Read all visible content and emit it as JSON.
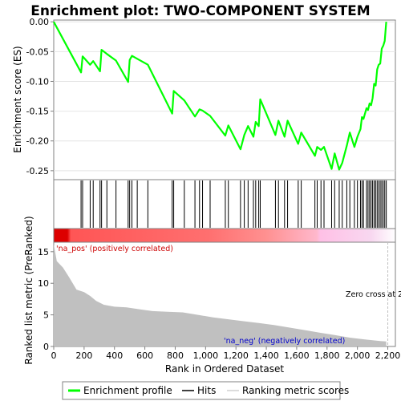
{
  "chart_data": {
    "type": "line",
    "title": "Enrichment plot: TWO-COMPONENT SYSTEM",
    "xlabel": "Rank in Ordered Dataset",
    "ylabel_top": "Enrichment score (ES)",
    "ylabel_bottom": "Ranked list metric (PreRanked)",
    "x_ticks": [
      "0",
      "200",
      "400",
      "600",
      "800",
      "1,000",
      "1,200",
      "1,400",
      "1,600",
      "1,800",
      "2,000",
      "2,200"
    ],
    "x_tick_values": [
      0,
      200,
      400,
      600,
      800,
      1000,
      1200,
      1400,
      1600,
      1800,
      2000,
      2200
    ],
    "xlim": [
      0,
      2250
    ],
    "es_yticks": [
      "0.00",
      "-0.05",
      "-0.10",
      "-0.15",
      "-0.20",
      "-0.25"
    ],
    "es_ytick_values": [
      0,
      -0.05,
      -0.1,
      -0.15,
      -0.2,
      -0.25
    ],
    "es_ylim": [
      -0.265,
      0.003
    ],
    "metric_yticks": [
      "0",
      "5",
      "10",
      "15"
    ],
    "metric_ytick_values": [
      0,
      5,
      10,
      15
    ],
    "metric_ylim": [
      0,
      16.5
    ],
    "n_genes": 2200,
    "series": [
      {
        "name": "Enrichment profile",
        "color": "#00ff00",
        "x": [
          0,
          180,
          190,
          240,
          260,
          305,
          315,
          350,
          410,
          490,
          500,
          515,
          550,
          620,
          780,
          790,
          860,
          930,
          960,
          980,
          1030,
          1130,
          1150,
          1230,
          1255,
          1280,
          1315,
          1330,
          1350,
          1360,
          1460,
          1480,
          1520,
          1540,
          1610,
          1630,
          1720,
          1735,
          1760,
          1780,
          1830,
          1850,
          1880,
          1900,
          1930,
          1950,
          1980,
          2000,
          2020,
          2030,
          2040,
          2060,
          2070,
          2080,
          2090,
          2100,
          2110,
          2120,
          2130,
          2140,
          2150,
          2160,
          2170,
          2180,
          2190
        ],
        "y": [
          0,
          -0.085,
          -0.058,
          -0.072,
          -0.066,
          -0.083,
          -0.047,
          -0.054,
          -0.065,
          -0.101,
          -0.064,
          -0.057,
          -0.062,
          -0.072,
          -0.154,
          -0.116,
          -0.132,
          -0.159,
          -0.147,
          -0.149,
          -0.158,
          -0.191,
          -0.174,
          -0.214,
          -0.19,
          -0.175,
          -0.193,
          -0.168,
          -0.175,
          -0.13,
          -0.19,
          -0.166,
          -0.193,
          -0.166,
          -0.205,
          -0.186,
          -0.225,
          -0.21,
          -0.215,
          -0.21,
          -0.247,
          -0.221,
          -0.248,
          -0.237,
          -0.208,
          -0.186,
          -0.21,
          -0.193,
          -0.18,
          -0.16,
          -0.163,
          -0.145,
          -0.148,
          -0.137,
          -0.14,
          -0.128,
          -0.104,
          -0.107,
          -0.08,
          -0.072,
          -0.07,
          -0.045,
          -0.04,
          -0.032,
          0.0
        ]
      }
    ],
    "hits": [
      180,
      190,
      240,
      260,
      305,
      315,
      350,
      410,
      490,
      500,
      515,
      550,
      620,
      780,
      790,
      860,
      930,
      960,
      980,
      1030,
      1130,
      1150,
      1230,
      1255,
      1280,
      1315,
      1330,
      1350,
      1360,
      1460,
      1480,
      1520,
      1540,
      1610,
      1630,
      1720,
      1735,
      1760,
      1780,
      1830,
      1850,
      1880,
      1900,
      1930,
      1950,
      1980,
      2000,
      2020,
      2030,
      2040,
      2060,
      2070,
      2080,
      2090,
      2100,
      2110,
      2120,
      2130,
      2140,
      2150,
      2160,
      2170,
      2180,
      2190
    ],
    "metric_curve": {
      "x": [
        0,
        20,
        60,
        100,
        150,
        200,
        240,
        280,
        330,
        400,
        480,
        560,
        650,
        750,
        850,
        950,
        1050,
        1150,
        1250,
        1350,
        1450,
        1550,
        1650,
        1750,
        1850,
        1950,
        2050,
        2150,
        2190
      ],
      "y": [
        16.2,
        13.5,
        12.5,
        11.0,
        9.0,
        8.6,
        8.0,
        7.2,
        6.6,
        6.3,
        6.2,
        5.9,
        5.6,
        5.5,
        5.4,
        5.0,
        4.6,
        4.3,
        4.0,
        3.7,
        3.4,
        3.0,
        2.6,
        2.2,
        1.8,
        1.4,
        1.1,
        0.85,
        0.8
      ]
    },
    "annotations": {
      "pos_label": "'na_pos' (positively correlated)",
      "neg_label": "'na_neg' (negatively correlated)",
      "zero_cross": "Zero cross at 2"
    },
    "legend": {
      "placement": "bottom",
      "items": [
        {
          "label": "Enrichment profile",
          "color": "#00ff00"
        },
        {
          "label": "Hits",
          "color": "#000000"
        },
        {
          "label": "Ranking metric scores",
          "color": "#c8c8c8"
        }
      ]
    },
    "colors": {
      "es_line": "#00ff00",
      "hit_line": "#000000",
      "metric_fill": "#c0c0c0",
      "pos_label": "#cc0000",
      "neg_label": "#0000cc",
      "zero_line": "#c0c0c0"
    }
  }
}
